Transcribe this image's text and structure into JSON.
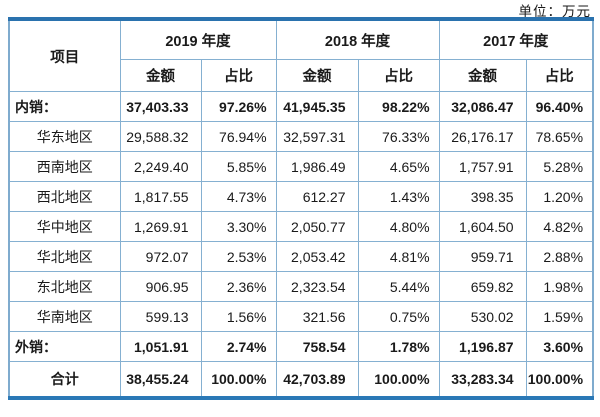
{
  "unit_label": "单位：万元",
  "table": {
    "item_header": "项目",
    "year_groups": [
      {
        "label": "2019 年度"
      },
      {
        "label": "2018 年度"
      },
      {
        "label": "2017 年度"
      }
    ],
    "sub_headers": {
      "amount": "金额",
      "ratio": "占比"
    },
    "rows": [
      {
        "label": "内销：",
        "type": "summary",
        "cells": [
          "37,403.33",
          "97.26%",
          "41,945.35",
          "98.22%",
          "32,086.47",
          "96.40%"
        ]
      },
      {
        "label": "华东地区",
        "type": "region",
        "cells": [
          "29,588.32",
          "76.94%",
          "32,597.31",
          "76.33%",
          "26,176.17",
          "78.65%"
        ]
      },
      {
        "label": "西南地区",
        "type": "region",
        "cells": [
          "2,249.40",
          "5.85%",
          "1,986.49",
          "4.65%",
          "1,757.91",
          "5.28%"
        ]
      },
      {
        "label": "西北地区",
        "type": "region",
        "cells": [
          "1,817.55",
          "4.73%",
          "612.27",
          "1.43%",
          "398.35",
          "1.20%"
        ]
      },
      {
        "label": "华中地区",
        "type": "region",
        "cells": [
          "1,269.91",
          "3.30%",
          "2,050.77",
          "4.80%",
          "1,604.50",
          "4.82%"
        ]
      },
      {
        "label": "华北地区",
        "type": "region",
        "cells": [
          "972.07",
          "2.53%",
          "2,053.42",
          "4.81%",
          "959.71",
          "2.88%"
        ]
      },
      {
        "label": "东北地区",
        "type": "region",
        "cells": [
          "906.95",
          "2.36%",
          "2,323.54",
          "5.44%",
          "659.82",
          "1.98%"
        ]
      },
      {
        "label": "华南地区",
        "type": "region",
        "cells": [
          "599.13",
          "1.56%",
          "321.56",
          "0.75%",
          "530.02",
          "1.59%"
        ]
      },
      {
        "label": "外销：",
        "type": "summary",
        "cells": [
          "1,051.91",
          "2.74%",
          "758.54",
          "1.78%",
          "1,196.87",
          "3.60%"
        ]
      },
      {
        "label": "合计",
        "type": "total",
        "cells": [
          "38,455.24",
          "100.00%",
          "42,703.89",
          "100.00%",
          "33,283.34",
          "100.00%"
        ]
      }
    ]
  }
}
